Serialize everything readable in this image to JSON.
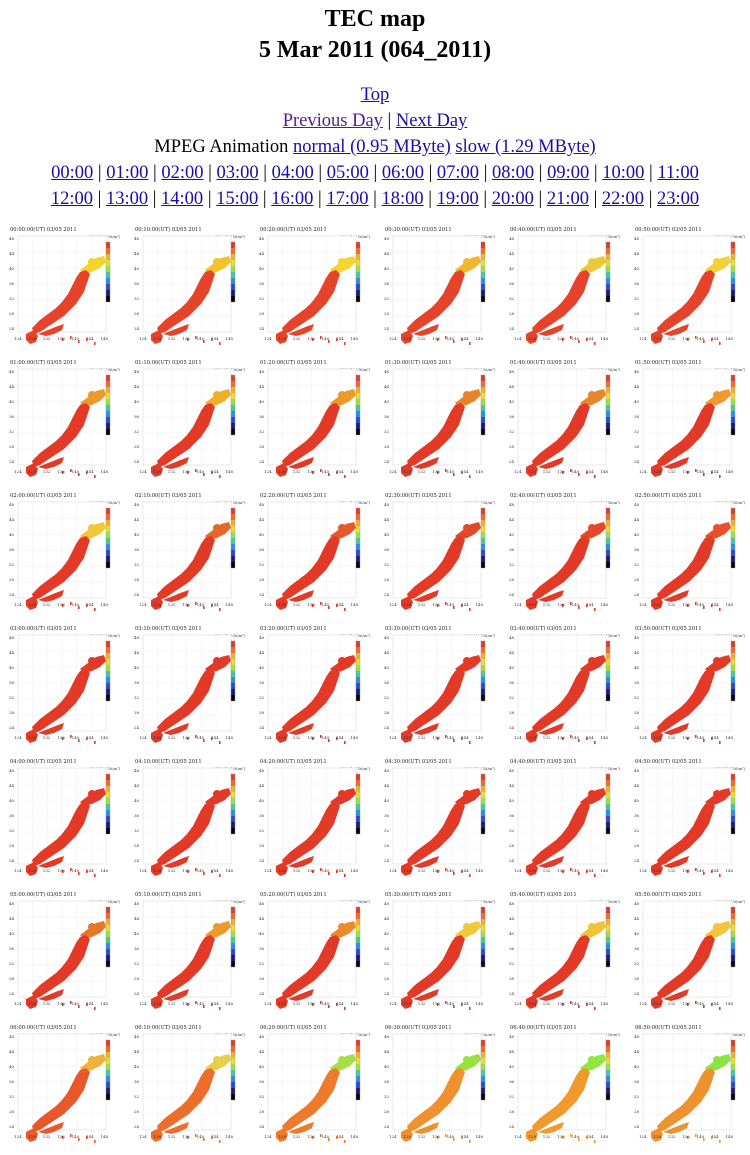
{
  "page": {
    "title": "TEC map",
    "subtitle": "5 Mar 2011 (064_2011)"
  },
  "nav": {
    "top": "Top",
    "previous_day": "Previous Day",
    "separator": "|",
    "next_day": "Next Day",
    "mpeg_label": "MPEG Animation",
    "mpeg_normal": "normal (0.95 MByte)",
    "mpeg_slow": "slow (1.29 MByte)"
  },
  "hours": [
    "00:00",
    "01:00",
    "02:00",
    "03:00",
    "04:00",
    "05:00",
    "06:00",
    "07:00",
    "08:00",
    "09:00",
    "10:00",
    "11:00",
    "12:00",
    "13:00",
    "14:00",
    "15:00",
    "16:00",
    "17:00",
    "18:00",
    "19:00",
    "20:00",
    "21:00",
    "22:00",
    "23:00"
  ],
  "thumbnail": {
    "date": "03/05 2011",
    "colorbar_label": "TEC (10^16/m²)",
    "lat_ticks": [
      "48",
      "44",
      "40",
      "36",
      "32",
      "28",
      "24"
    ],
    "lon_ticks": [
      "124",
      "128",
      "132",
      "136",
      "140",
      "144",
      "148"
    ],
    "times": [
      [
        "00:00:00(UT)",
        "00:10:00(UT)",
        "00:20:00(UT)",
        "00:30:00(UT)",
        "00:40:00(UT)",
        "00:50:00(UT)"
      ],
      [
        "01:00:00(UT)",
        "01:10:00(UT)",
        "01:20:00(UT)",
        "01:30:00(UT)",
        "01:40:00(UT)",
        "01:50:00(UT)"
      ],
      [
        "02:00:00(UT)",
        "02:10:00(UT)",
        "02:20:00(UT)",
        "02:30:00(UT)",
        "02:40:00(UT)",
        "02:50:00(UT)"
      ],
      [
        "03:00:00(UT)",
        "03:10:00(UT)",
        "03:20:00(UT)",
        "03:30:00(UT)",
        "03:40:00(UT)",
        "03:50:00(UT)"
      ],
      [
        "04:00:00(UT)",
        "04:10:00(UT)",
        "04:20:00(UT)",
        "04:30:00(UT)",
        "04:40:00(UT)",
        "04:50:00(UT)"
      ],
      [
        "05:00:00(UT)",
        "05:10:00(UT)",
        "05:20:00(UT)",
        "05:30:00(UT)",
        "05:40:00(UT)",
        "05:50:00(UT)"
      ],
      [
        "06:00:00(UT)",
        "06:10:00(UT)",
        "06:20:00(UT)",
        "06:30:00(UT)",
        "06:40:00(UT)",
        "06:50:00(UT)"
      ]
    ],
    "north_colors": [
      [
        "#f2d62c",
        "#f0c42a",
        "#f3d532",
        "#f0b82c",
        "#e9c83a",
        "#f1d23a"
      ],
      [
        "#ec9a2c",
        "#eeb02a",
        "#e99a28",
        "#e7842a",
        "#e7862a",
        "#ef9a2e"
      ],
      [
        "#f2c83a",
        "#e4682a",
        "#e6582a",
        "#e2482a",
        "#e4482a",
        "#e8502a"
      ],
      [
        "#e23a28",
        "#e23a28",
        "#e23a28",
        "#e23a28",
        "#e23a28",
        "#e23a28"
      ],
      [
        "#e23a28",
        "#e23a28",
        "#e23a28",
        "#e23a28",
        "#e23a28",
        "#e23a28"
      ],
      [
        "#e4782a",
        "#ec9a2c",
        "#ec8a2c",
        "#f0c83a",
        "#f0c43a",
        "#f2c43a"
      ],
      [
        "#f0b23a",
        "#e6d04a",
        "#a8dc4a",
        "#98e040",
        "#8ee63e",
        "#8ce442"
      ]
    ],
    "body_colors": [
      [
        "#e6432b",
        "#e6432b",
        "#e6432b",
        "#e6432b",
        "#e6432b",
        "#e6432b"
      ],
      [
        "#e33a28",
        "#e33a28",
        "#e33a28",
        "#e33a28",
        "#e33a28",
        "#e33a28"
      ],
      [
        "#e33a28",
        "#e33a28",
        "#e33a28",
        "#e33a28",
        "#e33a28",
        "#e33a28"
      ],
      [
        "#e33a28",
        "#e33a28",
        "#e33a28",
        "#e33a28",
        "#e33a28",
        "#e33a28"
      ],
      [
        "#e33a28",
        "#e33a28",
        "#e33a28",
        "#e33a28",
        "#e33a28",
        "#e33a28"
      ],
      [
        "#e33a28",
        "#e33a28",
        "#e33a28",
        "#e33a28",
        "#e33a28",
        "#e33a28"
      ],
      [
        "#e8582a",
        "#ec6e2a",
        "#ee7a2c",
        "#f0902e",
        "#f09a2e",
        "#ee922e"
      ]
    ]
  }
}
